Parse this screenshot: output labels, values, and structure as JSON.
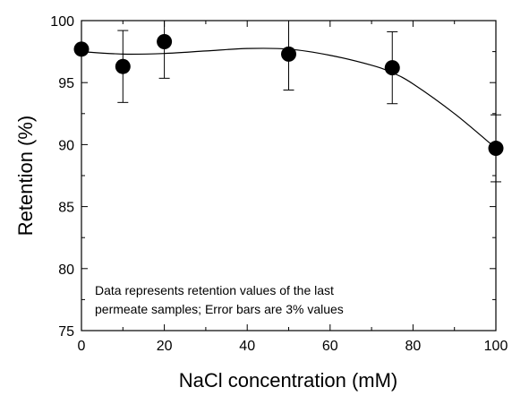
{
  "chart_data": {
    "type": "scatter",
    "title": "",
    "xlabel": "NaCl concentration (mM)",
    "ylabel": "Retention (%)",
    "xlim": [
      0,
      100
    ],
    "ylim": [
      75,
      100
    ],
    "x_ticks": [
      0,
      20,
      40,
      60,
      80,
      100
    ],
    "y_ticks": [
      75,
      80,
      85,
      90,
      95,
      100
    ],
    "x_minor_step": 10,
    "y_minor_step": 2.5,
    "grid": false,
    "legend": "none",
    "colors": {
      "marker": "#000000",
      "line": "#000000"
    },
    "series": [
      {
        "x": [
          0,
          10,
          20,
          50,
          75,
          100
        ],
        "y": [
          97.7,
          96.3,
          98.3,
          97.3,
          96.2,
          89.7
        ],
        "error": [
          0,
          2.9,
          2.95,
          2.9,
          2.9,
          2.7
        ]
      }
    ],
    "fit_curve": {
      "x": [
        0,
        10,
        20,
        30,
        40,
        50,
        60,
        70,
        75,
        80,
        90,
        100
      ],
      "y": [
        97.5,
        97.3,
        97.35,
        97.55,
        97.75,
        97.7,
        97.2,
        96.4,
        95.8,
        94.9,
        92.5,
        89.7
      ]
    },
    "annotation": {
      "line1": "Data represents retention values of the last",
      "line2": "permeate samples; Error bars are 3% values"
    }
  }
}
